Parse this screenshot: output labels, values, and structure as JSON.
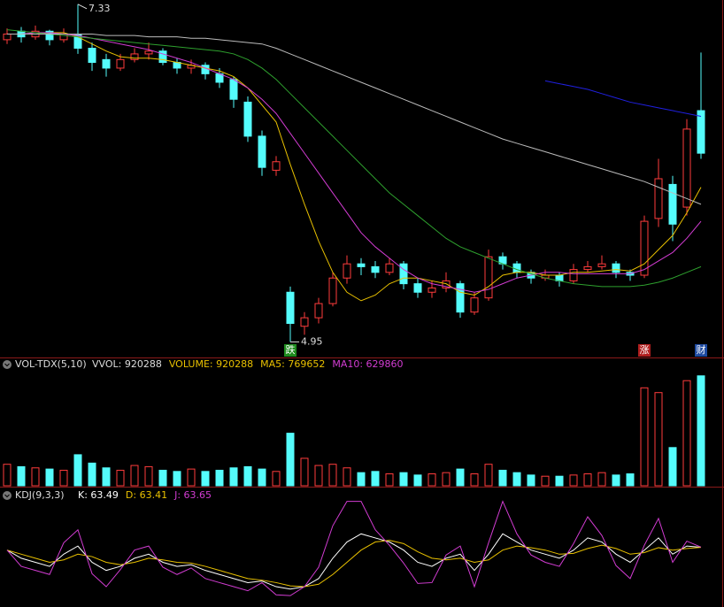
{
  "chart_data": [
    {
      "type": "candlestick",
      "ylim": [
        4.84,
        7.36
      ],
      "up_color": "#ff3c3c",
      "down_color": "#54fcfc",
      "candles": [
        [
          7.08,
          7.16,
          7.05,
          7.12
        ],
        [
          7.14,
          7.17,
          7.06,
          7.1
        ],
        [
          7.1,
          7.18,
          7.08,
          7.14
        ],
        [
          7.14,
          7.15,
          7.04,
          7.08
        ],
        [
          7.08,
          7.16,
          7.06,
          7.12
        ],
        [
          7.12,
          7.33,
          6.98,
          7.02
        ],
        [
          7.02,
          7.06,
          6.86,
          6.92
        ],
        [
          6.94,
          6.98,
          6.82,
          6.88
        ],
        [
          6.88,
          6.98,
          6.86,
          6.94
        ],
        [
          6.94,
          7.02,
          6.92,
          6.98
        ],
        [
          6.98,
          7.06,
          6.94,
          7.0
        ],
        [
          7.0,
          7.02,
          6.9,
          6.92
        ],
        [
          6.92,
          6.95,
          6.84,
          6.88
        ],
        [
          6.88,
          6.94,
          6.84,
          6.9
        ],
        [
          6.9,
          6.92,
          6.8,
          6.84
        ],
        [
          6.84,
          6.88,
          6.74,
          6.78
        ],
        [
          6.8,
          6.82,
          6.6,
          6.66
        ],
        [
          6.64,
          6.68,
          6.36,
          6.4
        ],
        [
          6.4,
          6.44,
          6.12,
          6.18
        ],
        [
          6.16,
          6.26,
          6.12,
          6.22
        ],
        [
          5.3,
          5.34,
          4.95,
          5.08
        ],
        [
          5.06,
          5.16,
          5.0,
          5.12
        ],
        [
          5.12,
          5.26,
          5.08,
          5.22
        ],
        [
          5.22,
          5.44,
          5.2,
          5.4
        ],
        [
          5.4,
          5.56,
          5.36,
          5.5
        ],
        [
          5.5,
          5.54,
          5.42,
          5.48
        ],
        [
          5.48,
          5.52,
          5.4,
          5.44
        ],
        [
          5.44,
          5.54,
          5.42,
          5.5
        ],
        [
          5.5,
          5.52,
          5.32,
          5.36
        ],
        [
          5.36,
          5.4,
          5.26,
          5.3
        ],
        [
          5.3,
          5.38,
          5.26,
          5.33
        ],
        [
          5.33,
          5.44,
          5.3,
          5.38
        ],
        [
          5.36,
          5.38,
          5.12,
          5.16
        ],
        [
          5.16,
          5.3,
          5.14,
          5.26
        ],
        [
          5.26,
          5.6,
          5.24,
          5.55
        ],
        [
          5.55,
          5.58,
          5.46,
          5.5
        ],
        [
          5.5,
          5.52,
          5.4,
          5.44
        ],
        [
          5.44,
          5.46,
          5.36,
          5.4
        ],
        [
          5.4,
          5.46,
          5.38,
          5.42
        ],
        [
          5.42,
          5.44,
          5.34,
          5.38
        ],
        [
          5.38,
          5.5,
          5.36,
          5.46
        ],
        [
          5.46,
          5.52,
          5.44,
          5.48
        ],
        [
          5.48,
          5.56,
          5.46,
          5.5
        ],
        [
          5.5,
          5.52,
          5.4,
          5.44
        ],
        [
          5.44,
          5.46,
          5.38,
          5.42
        ],
        [
          5.42,
          5.84,
          5.4,
          5.8
        ],
        [
          5.82,
          6.24,
          5.76,
          6.1
        ],
        [
          6.06,
          6.12,
          5.66,
          5.78
        ],
        [
          5.9,
          6.52,
          5.84,
          6.45
        ],
        [
          6.58,
          6.99,
          6.24,
          6.28
        ]
      ],
      "series": [
        {
          "color": "#e8c000",
          "values": [
            7.12,
            7.12,
            7.12,
            7.13,
            7.13,
            7.1,
            7.05,
            7.0,
            6.96,
            6.95,
            6.95,
            6.94,
            6.92,
            6.9,
            6.88,
            6.86,
            6.82,
            6.74,
            6.62,
            6.5,
            6.2,
            5.92,
            5.66,
            5.44,
            5.3,
            5.24,
            5.28,
            5.36,
            5.4,
            5.4,
            5.38,
            5.36,
            5.3,
            5.28,
            5.34,
            5.42,
            5.44,
            5.44,
            5.42,
            5.42,
            5.44,
            5.44,
            5.45,
            5.46,
            5.45,
            5.5,
            5.6,
            5.7,
            5.86,
            6.04
          ]
        },
        {
          "color": "#d23cd2",
          "values": [
            7.12,
            7.12,
            7.13,
            7.13,
            7.12,
            7.11,
            7.09,
            7.07,
            7.05,
            7.03,
            7.01,
            6.98,
            6.95,
            6.92,
            6.88,
            6.84,
            6.8,
            6.74,
            6.66,
            6.56,
            6.42,
            6.28,
            6.14,
            6.0,
            5.86,
            5.72,
            5.62,
            5.54,
            5.46,
            5.4,
            5.36,
            5.34,
            5.32,
            5.3,
            5.32,
            5.36,
            5.4,
            5.42,
            5.44,
            5.44,
            5.43,
            5.43,
            5.43,
            5.43,
            5.43,
            5.46,
            5.52,
            5.58,
            5.68,
            5.8
          ]
        },
        {
          "color": "#2ea02e",
          "values": [
            7.15,
            7.14,
            7.13,
            7.12,
            7.11,
            7.1,
            7.09,
            7.08,
            7.07,
            7.06,
            7.05,
            7.04,
            7.03,
            7.02,
            7.01,
            7.0,
            6.98,
            6.94,
            6.88,
            6.8,
            6.7,
            6.6,
            6.5,
            6.4,
            6.3,
            6.2,
            6.1,
            6.0,
            5.92,
            5.84,
            5.76,
            5.68,
            5.62,
            5.58,
            5.54,
            5.5,
            5.46,
            5.43,
            5.4,
            5.38,
            5.36,
            5.35,
            5.34,
            5.34,
            5.34,
            5.35,
            5.37,
            5.4,
            5.44,
            5.48
          ]
        },
        {
          "color": "#bbbbbb",
          "values": [
            7.12,
            7.12,
            7.12,
            7.12,
            7.12,
            7.12,
            7.12,
            7.11,
            7.11,
            7.11,
            7.1,
            7.1,
            7.1,
            7.09,
            7.09,
            7.08,
            7.07,
            7.06,
            7.05,
            7.02,
            6.98,
            6.94,
            6.9,
            6.86,
            6.82,
            6.78,
            6.74,
            6.7,
            6.66,
            6.62,
            6.58,
            6.54,
            6.5,
            6.46,
            6.42,
            6.38,
            6.35,
            6.32,
            6.29,
            6.26,
            6.23,
            6.2,
            6.17,
            6.14,
            6.11,
            6.08,
            6.04,
            6.0,
            5.96,
            5.92
          ]
        },
        {
          "color": "#2020e0",
          "values": [
            null,
            null,
            null,
            null,
            null,
            null,
            null,
            null,
            null,
            null,
            null,
            null,
            null,
            null,
            null,
            null,
            null,
            null,
            null,
            null,
            null,
            null,
            null,
            null,
            null,
            null,
            null,
            null,
            null,
            null,
            null,
            null,
            null,
            null,
            null,
            null,
            null,
            null,
            6.79,
            6.77,
            6.75,
            6.73,
            6.7,
            6.67,
            6.64,
            6.62,
            6.6,
            6.58,
            6.56,
            6.54
          ]
        }
      ],
      "signals": [
        null,
        null,
        null,
        null,
        null,
        null,
        null,
        null,
        null,
        null,
        null,
        null,
        null,
        null,
        null,
        null,
        null,
        null,
        null,
        null,
        {
          "text": "跌",
          "color": "#1e8c1e"
        },
        null,
        null,
        null,
        null,
        null,
        null,
        null,
        null,
        null,
        null,
        null,
        null,
        null,
        null,
        null,
        null,
        null,
        null,
        null,
        null,
        null,
        null,
        null,
        null,
        {
          "text": "涨",
          "color": "#b01e1e"
        },
        null,
        null,
        null,
        {
          "text": "财",
          "color": "#1e4aa0"
        }
      ]
    },
    {
      "type": "bar",
      "title": "VOL-TDX(5,10)",
      "legend": [
        {
          "text": "VVOL: 920288",
          "color": "#dddddd"
        },
        {
          "text": "VOLUME: 920288",
          "color": "#e8c000"
        },
        {
          "text": "MA5: 769652",
          "color": "#e8c000"
        },
        {
          "text": "MA10: 629860",
          "color": "#d23cd2"
        }
      ],
      "ylim": [
        0,
        1000000
      ],
      "values": [
        180000,
        160000,
        150000,
        140000,
        130000,
        260000,
        190000,
        150000,
        130000,
        170000,
        160000,
        130000,
        120000,
        140000,
        120000,
        130000,
        150000,
        160000,
        140000,
        120000,
        440000,
        230000,
        170000,
        180000,
        150000,
        110000,
        120000,
        100000,
        110000,
        90000,
        100000,
        110000,
        140000,
        100000,
        180000,
        130000,
        110000,
        90000,
        80000,
        80000,
        90000,
        100000,
        110000,
        90000,
        100000,
        820000,
        780000,
        320000,
        880000,
        920288
      ]
    },
    {
      "type": "line",
      "title": "KDJ(9,3,3)",
      "ylim": [
        -10,
        125
      ],
      "series": [
        {
          "name": "K: 63.49",
          "color": "#ffffff",
          "values": [
            60,
            50,
            45,
            40,
            55,
            65,
            45,
            35,
            40,
            50,
            55,
            45,
            40,
            42,
            35,
            30,
            25,
            20,
            22,
            15,
            12,
            15,
            25,
            50,
            70,
            80,
            75,
            70,
            60,
            45,
            40,
            50,
            55,
            35,
            55,
            80,
            70,
            60,
            55,
            50,
            60,
            75,
            70,
            55,
            45,
            60,
            75,
            55,
            65,
            63.49
          ]
        },
        {
          "name": "D: 63.41",
          "color": "#e8c000",
          "values": [
            60,
            55,
            50,
            45,
            48,
            55,
            52,
            45,
            42,
            45,
            50,
            48,
            45,
            44,
            40,
            35,
            30,
            25,
            23,
            20,
            16,
            15,
            18,
            30,
            45,
            60,
            70,
            72,
            68,
            58,
            50,
            48,
            50,
            45,
            48,
            60,
            65,
            63,
            60,
            55,
            56,
            62,
            66,
            62,
            55,
            57,
            63,
            60,
            62,
            63.41
          ]
        },
        {
          "name": "J: 63.65",
          "color": "#d23cd2",
          "values": [
            60,
            40,
            35,
            30,
            69,
            85,
            31,
            15,
            36,
            60,
            65,
            39,
            30,
            38,
            25,
            20,
            15,
            10,
            20,
            5,
            4,
            15,
            39,
            90,
            120,
            120,
            85,
            66,
            44,
            19,
            20,
            54,
            65,
            15,
            69,
            120,
            80,
            54,
            45,
            40,
            68,
            101,
            78,
            41,
            25,
            66,
            99,
            45,
            71,
            63.65
          ]
        }
      ]
    }
  ]
}
